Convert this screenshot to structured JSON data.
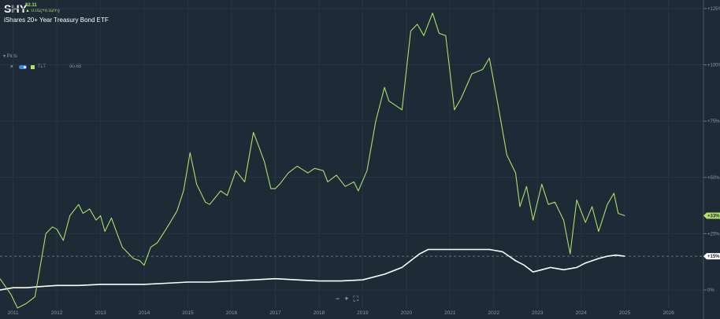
{
  "header": {
    "symbol": "SHY",
    "price": "82.11",
    "change": "▲ 0.01(+0.02%)",
    "name": "iShares 20+ Year Treasury Bond ETF"
  },
  "plots_panel": {
    "title": "▾ Plots",
    "remove_icon": "close-icon",
    "items": [
      {
        "name": "TLT",
        "value": "90.65",
        "color": "#aee06a"
      }
    ]
  },
  "controls": {
    "zoom_out": "−",
    "zoom_in": "+",
    "fit": "⛶"
  },
  "colors": {
    "background": "#1e2a36",
    "primary_line": "#ffffff",
    "comparison_line": "#aee06a",
    "grid": "#283542"
  },
  "chart_data": {
    "type": "line",
    "x_unit": "year",
    "xlim": [
      2010.7,
      2026.8
    ],
    "ylim": [
      -8,
      126
    ],
    "x_tick_labels": [
      "2011",
      "2012",
      "2013",
      "2014",
      "2015",
      "2016",
      "2017",
      "2018",
      "2019",
      "2020",
      "2021",
      "2022",
      "2023",
      "2024",
      "2025",
      "2026"
    ],
    "y_tick_labels": [
      {
        "value": 125,
        "label": "+125%"
      },
      {
        "value": 100,
        "label": "+100%"
      },
      {
        "value": 75,
        "label": "+75%"
      },
      {
        "value": 50,
        "label": "+50%"
      },
      {
        "value": 25,
        "label": "+25%"
      },
      {
        "value": 0,
        "label": "0%"
      }
    ],
    "series": [
      {
        "name": "SHY",
        "color": "#ffffff",
        "last_label": "+15%",
        "x": [
          2010.7,
          2011.0,
          2011.3,
          2011.6,
          2012.0,
          2012.5,
          2013.0,
          2013.5,
          2014.0,
          2014.5,
          2015.0,
          2015.5,
          2016.0,
          2016.5,
          2017.0,
          2017.5,
          2018.0,
          2018.5,
          2019.0,
          2019.5,
          2019.9,
          2020.1,
          2020.3,
          2020.5,
          2021.0,
          2021.5,
          2021.9,
          2022.2,
          2022.5,
          2022.7,
          2022.9,
          2023.1,
          2023.3,
          2023.6,
          2023.9,
          2024.1,
          2024.4,
          2024.6,
          2024.8,
          2025.0
        ],
        "y": [
          0,
          1,
          1,
          1.5,
          2,
          2,
          2.5,
          2.5,
          2.5,
          3,
          3.5,
          3.5,
          4,
          4.5,
          5,
          4.5,
          4,
          4,
          4.5,
          7,
          10,
          13,
          16,
          18,
          18,
          18,
          18,
          17,
          13,
          11,
          8,
          9,
          10,
          9,
          10,
          12,
          14,
          15,
          15.5,
          15
        ]
      },
      {
        "name": "TLT",
        "color": "#aee06a",
        "last_label": "+33%",
        "x": [
          2010.7,
          2010.95,
          2011.1,
          2011.3,
          2011.5,
          2011.75,
          2011.9,
          2012.0,
          2012.15,
          2012.3,
          2012.5,
          2012.6,
          2012.75,
          2012.9,
          2013.0,
          2013.1,
          2013.25,
          2013.4,
          2013.5,
          2013.75,
          2013.9,
          2014.0,
          2014.15,
          2014.3,
          2014.5,
          2014.75,
          2014.9,
          2015.05,
          2015.2,
          2015.4,
          2015.5,
          2015.75,
          2015.9,
          2016.1,
          2016.3,
          2016.5,
          2016.6,
          2016.75,
          2016.9,
          2017.0,
          2017.1,
          2017.3,
          2017.5,
          2017.75,
          2017.9,
          2018.1,
          2018.2,
          2018.4,
          2018.6,
          2018.8,
          2018.9,
          2019.1,
          2019.3,
          2019.5,
          2019.6,
          2019.75,
          2019.9,
          2020.1,
          2020.25,
          2020.4,
          2020.6,
          2020.75,
          2020.9,
          2021.1,
          2021.25,
          2021.5,
          2021.75,
          2021.9,
          2022.1,
          2022.3,
          2022.5,
          2022.6,
          2022.75,
          2022.9,
          2023.1,
          2023.25,
          2023.4,
          2023.6,
          2023.75,
          2023.9,
          2024.1,
          2024.25,
          2024.4,
          2024.6,
          2024.75,
          2024.85,
          2025.0
        ],
        "y": [
          5,
          -2,
          -8,
          -6,
          -3,
          25,
          28,
          27,
          22,
          33,
          38,
          34,
          36,
          31,
          33,
          26,
          32,
          24,
          19,
          14,
          13,
          11,
          19,
          21,
          27,
          35,
          44,
          61,
          47,
          39,
          38,
          44,
          42,
          53,
          48,
          70,
          65,
          57,
          45,
          45,
          47,
          52,
          55,
          52,
          54,
          53,
          48,
          51,
          46,
          48,
          44,
          53,
          75,
          90,
          84,
          82,
          80,
          115,
          118,
          113,
          123,
          114,
          113,
          80,
          85,
          96,
          98,
          103,
          82,
          60,
          52,
          37,
          46,
          31,
          47,
          38,
          39,
          31,
          16,
          40,
          30,
          37,
          26,
          38,
          43,
          34,
          33
        ]
      }
    ],
    "reference_line_value": 15
  }
}
